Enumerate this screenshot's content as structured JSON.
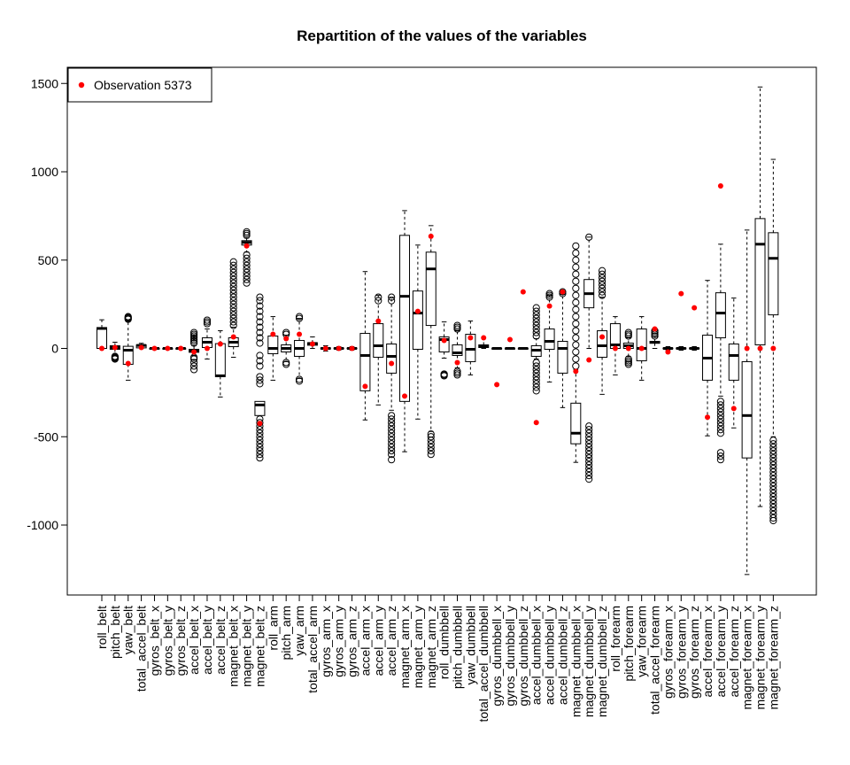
{
  "chart_data": {
    "type": "boxplot",
    "title": "Repartition of the values of the variables",
    "xlabel": "",
    "ylabel": "",
    "ylim": [
      -1400,
      1600
    ],
    "yticks": [
      -1000,
      -500,
      0,
      500,
      1000,
      1500
    ],
    "grid": false,
    "legend": {
      "position": "top-left",
      "entries": [
        {
          "label": "Observation 5373",
          "color": "#ff0000",
          "symbol": "filled-circle"
        }
      ]
    },
    "colors": {
      "box": "#000000",
      "observation": "#ff0000"
    },
    "categories": [
      "roll_belt",
      "pitch_belt",
      "yaw_belt",
      "total_accel_belt",
      "gyros_belt_x",
      "gyros_belt_y",
      "gyros_belt_z",
      "accel_belt_x",
      "accel_belt_y",
      "accel_belt_z",
      "magnet_belt_x",
      "magnet_belt_y",
      "magnet_belt_z",
      "roll_arm",
      "pitch_arm",
      "yaw_arm",
      "total_accel_arm",
      "gyros_arm_x",
      "gyros_arm_y",
      "gyros_arm_z",
      "accel_arm_x",
      "accel_arm_y",
      "accel_arm_z",
      "magnet_arm_x",
      "magnet_arm_y",
      "magnet_arm_z",
      "roll_dumbbell",
      "pitch_dumbbell",
      "yaw_dumbbell",
      "total_accel_dumbbell",
      "gyros_dumbbell_x",
      "gyros_dumbbell_y",
      "gyros_dumbbell_z",
      "accel_dumbbell_x",
      "accel_dumbbell_y",
      "accel_dumbbell_z",
      "magnet_dumbbell_x",
      "magnet_dumbbell_y",
      "magnet_dumbbell_z",
      "roll_forearm",
      "pitch_forearm",
      "yaw_forearm",
      "total_accel_forearm",
      "gyros_forearm_x",
      "gyros_forearm_y",
      "gyros_forearm_z",
      "accel_forearm_x",
      "accel_forearm_y",
      "accel_forearm_z",
      "magnet_forearm_x",
      "magnet_forearm_y",
      "magnet_forearm_z"
    ],
    "boxes": [
      {
        "wl": -2,
        "q1": 0,
        "med": 113,
        "q3": 118,
        "wh": 162,
        "out": []
      },
      {
        "wl": -40,
        "q1": -5,
        "med": 5,
        "q3": 15,
        "wh": 35,
        "out": [
          -60,
          -55,
          -50,
          -45
        ]
      },
      {
        "wl": -180,
        "q1": -90,
        "med": -10,
        "q3": 12,
        "wh": 160,
        "out": [
          165,
          170,
          175,
          180
        ]
      },
      {
        "wl": 0,
        "q1": 3,
        "med": 17,
        "q3": 20,
        "wh": 29,
        "out": []
      },
      {
        "wl": -1,
        "q1": -0.1,
        "med": 0,
        "q3": 0.1,
        "wh": 1,
        "out": []
      },
      {
        "wl": -1,
        "q1": -0.1,
        "med": 0,
        "q3": 0.1,
        "wh": 1,
        "out": []
      },
      {
        "wl": -1,
        "q1": -0.1,
        "med": 0,
        "q3": 0.1,
        "wh": 1,
        "out": []
      },
      {
        "wl": -40,
        "q1": -22,
        "med": -15,
        "q3": -5,
        "wh": 15,
        "out": [
          -120,
          -100,
          -80,
          -60,
          -50,
          30,
          40,
          50,
          60,
          70,
          80,
          90
        ]
      },
      {
        "wl": -60,
        "q1": 5,
        "med": 35,
        "q3": 60,
        "wh": 110,
        "out": [
          140,
          150,
          160
        ]
      },
      {
        "wl": -275,
        "q1": -160,
        "med": -155,
        "q3": 27,
        "wh": 100,
        "out": []
      },
      {
        "wl": -50,
        "q1": 10,
        "med": 35,
        "q3": 60,
        "wh": 120,
        "out": [
          130,
          150,
          170,
          190,
          210,
          230,
          250,
          270,
          290,
          310,
          330,
          350,
          370,
          390,
          410,
          430,
          450,
          470,
          490
        ]
      },
      {
        "wl": 545,
        "q1": 585,
        "med": 600,
        "q3": 610,
        "wh": 625,
        "out": [
          370,
          390,
          410,
          430,
          450,
          470,
          490,
          510,
          530,
          640,
          650,
          660
        ]
      },
      {
        "wl": -375,
        "q1": -380,
        "med": -320,
        "q3": -300,
        "wh": -305,
        "out": [
          -620,
          -600,
          -580,
          -560,
          -540,
          -520,
          -500,
          -480,
          -460,
          -440,
          -420,
          -400,
          -200,
          -180,
          -160,
          -100,
          -70,
          -40,
          30,
          60,
          90,
          120,
          150,
          180,
          210,
          240,
          270,
          290
        ]
      },
      {
        "wl": -180,
        "q1": -30,
        "med": 0,
        "q3": 70,
        "wh": 180,
        "out": []
      },
      {
        "wl": -75,
        "q1": -20,
        "med": 0,
        "q3": 20,
        "wh": 75,
        "out": [
          -90,
          -80,
          80,
          90
        ]
      },
      {
        "wl": -170,
        "q1": -45,
        "med": 0,
        "q3": 45,
        "wh": 170,
        "out": [
          -185,
          -175,
          170,
          180
        ]
      },
      {
        "wl": 0,
        "q1": 18,
        "med": 28,
        "q3": 32,
        "wh": 65,
        "out": []
      },
      {
        "wl": -15,
        "q1": -3,
        "med": 0,
        "q3": 3,
        "wh": 15,
        "out": []
      },
      {
        "wl": -10,
        "q1": -2,
        "med": 0,
        "q3": 2,
        "wh": 10,
        "out": []
      },
      {
        "wl": -10,
        "q1": -2,
        "med": 0,
        "q3": 2,
        "wh": 10,
        "out": []
      },
      {
        "wl": -405,
        "q1": -240,
        "med": -40,
        "q3": 85,
        "wh": 435,
        "out": []
      },
      {
        "wl": -320,
        "q1": -50,
        "med": 15,
        "q3": 140,
        "wh": 300,
        "out": [
          270,
          290
        ]
      },
      {
        "wl": -350,
        "q1": -140,
        "med": -45,
        "q3": 25,
        "wh": 290,
        "out": [
          -630,
          -600,
          -580,
          -560,
          -540,
          -520,
          -500,
          -480,
          -460,
          -440,
          -420,
          -400,
          -380,
          270,
          290
        ]
      },
      {
        "wl": -585,
        "q1": -300,
        "med": 295,
        "q3": 640,
        "wh": 780,
        "out": []
      },
      {
        "wl": -400,
        "q1": -5,
        "med": 200,
        "q3": 325,
        "wh": 585,
        "out": []
      },
      {
        "wl": -470,
        "q1": 130,
        "med": 450,
        "q3": 545,
        "wh": 695,
        "out": [
          -600,
          -580,
          -560,
          -540,
          -520,
          -500,
          -485
        ]
      },
      {
        "wl": -55,
        "q1": -20,
        "med": 50,
        "q3": 65,
        "wh": 150,
        "out": [
          -155,
          -150,
          -145
        ]
      },
      {
        "wl": -110,
        "q1": -40,
        "med": -25,
        "q3": 20,
        "wh": 100,
        "out": [
          -150,
          -140,
          -130,
          110,
          120,
          130
        ]
      },
      {
        "wl": -150,
        "q1": -75,
        "med": -5,
        "q3": 80,
        "wh": 155,
        "out": []
      },
      {
        "wl": 0,
        "q1": 5,
        "med": 12,
        "q3": 20,
        "wh": 60,
        "out": []
      },
      {
        "wl": -3,
        "q1": -0.5,
        "med": 0,
        "q3": 0.5,
        "wh": 3,
        "out": []
      },
      {
        "wl": -3,
        "q1": -0.5,
        "med": 0,
        "q3": 0.5,
        "wh": 3,
        "out": []
      },
      {
        "wl": -3,
        "q1": -0.5,
        "med": 0,
        "q3": 0.5,
        "wh": 3,
        "out": []
      },
      {
        "wl": -60,
        "q1": -45,
        "med": -10,
        "q3": 15,
        "wh": 55,
        "out": [
          -240,
          -220,
          -200,
          -180,
          -160,
          -140,
          -120,
          -100,
          -80,
          70,
          90,
          110,
          130,
          150,
          170,
          190,
          210,
          230
        ]
      },
      {
        "wl": -190,
        "q1": -5,
        "med": 40,
        "q3": 110,
        "wh": 300,
        "out": [
          290,
          300,
          310
        ]
      },
      {
        "wl": -335,
        "q1": -140,
        "med": 0,
        "q3": 40,
        "wh": 305,
        "out": [
          310,
          320
        ]
      },
      {
        "wl": -645,
        "q1": -540,
        "med": -480,
        "q3": -310,
        "wh": -120,
        "out": [
          -100,
          -60,
          -20,
          20,
          60,
          100,
          140,
          180,
          220,
          260,
          300,
          340,
          380,
          420,
          460,
          500,
          540,
          580
        ]
      },
      {
        "wl": 0,
        "q1": 230,
        "med": 310,
        "q3": 390,
        "wh": 630,
        "out": [
          -740,
          -720,
          -700,
          -680,
          -660,
          -640,
          -620,
          -600,
          -580,
          -560,
          -540,
          -520,
          -500,
          -480,
          -460,
          -440,
          630
        ]
      },
      {
        "wl": -260,
        "q1": -50,
        "med": 15,
        "q3": 100,
        "wh": 290,
        "out": [
          300,
          320,
          340,
          360,
          380,
          400,
          420,
          440
        ]
      },
      {
        "wl": -150,
        "q1": 0,
        "med": 20,
        "q3": 140,
        "wh": 180,
        "out": []
      },
      {
        "wl": -45,
        "q1": 0,
        "med": 15,
        "q3": 30,
        "wh": 60,
        "out": [
          -90,
          -80,
          -70,
          -60,
          70,
          80,
          90
        ]
      },
      {
        "wl": -180,
        "q1": -70,
        "med": 0,
        "q3": 110,
        "wh": 180,
        "out": []
      },
      {
        "wl": 0,
        "q1": 29,
        "med": 35,
        "q3": 40,
        "wh": 65,
        "out": [
          70,
          80,
          90,
          100
        ]
      },
      {
        "wl": -10,
        "q1": -1,
        "med": 0,
        "q3": 2,
        "wh": 10,
        "out": []
      },
      {
        "wl": -10,
        "q1": -2,
        "med": 0,
        "q3": 2,
        "wh": 10,
        "out": []
      },
      {
        "wl": -10,
        "q1": -2,
        "med": 0,
        "q3": 2,
        "wh": 10,
        "out": []
      },
      {
        "wl": -495,
        "q1": -180,
        "med": -55,
        "q3": 75,
        "wh": 385,
        "out": []
      },
      {
        "wl": -270,
        "q1": 60,
        "med": 200,
        "q3": 315,
        "wh": 590,
        "out": [
          -630,
          -610,
          -590,
          -480,
          -460,
          -440,
          -420,
          -400,
          -380,
          -360,
          -340,
          -320,
          -300
        ]
      },
      {
        "wl": -450,
        "q1": -180,
        "med": -40,
        "q3": 25,
        "wh": 285,
        "out": []
      },
      {
        "wl": -1280,
        "q1": -620,
        "med": -380,
        "q3": -75,
        "wh": 670,
        "out": []
      },
      {
        "wl": -895,
        "q1": 20,
        "med": 590,
        "q3": 735,
        "wh": 1480,
        "out": []
      },
      {
        "wl": -500,
        "q1": 190,
        "med": 510,
        "q3": 655,
        "wh": 1070,
        "out": [
          -975,
          -960,
          -940,
          -920,
          -900,
          -880,
          -860,
          -840,
          -820,
          -800,
          -780,
          -760,
          -740,
          -720,
          -700,
          -680,
          -660,
          -640,
          -620,
          -600,
          -580,
          -560,
          -540,
          -520
        ]
      }
    ],
    "observation": [
      0,
      5,
      -85,
      5,
      0,
      0,
      0,
      -20,
      0,
      25,
      65,
      580,
      -425,
      80,
      55,
      80,
      25,
      0,
      0,
      0,
      -215,
      155,
      -85,
      -270,
      210,
      635,
      45,
      -80,
      60,
      60,
      -205,
      50,
      320,
      -420,
      240,
      320,
      -130,
      -65,
      65,
      0,
      0,
      0,
      110,
      -20,
      310,
      230,
      -390,
      920,
      -340,
      0,
      0,
      0
    ]
  }
}
